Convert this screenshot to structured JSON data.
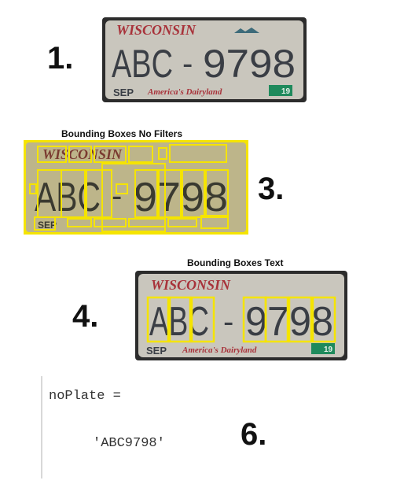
{
  "steps": {
    "s1": "1.",
    "s3": "3.",
    "s4": "4.",
    "s6": "6."
  },
  "plate": {
    "state": "WISCONSIN",
    "number_left": "ABC",
    "dash": "-",
    "number_right": "9798",
    "month": "SEP",
    "slogan": "America's Dairyland",
    "sticker": "19"
  },
  "panels": {
    "no_filters_title": "Bounding Boxes No Filters",
    "text_title": "Bounding Boxes Text"
  },
  "code": {
    "line1": "noPlate =",
    "line2": "'ABC9798'"
  },
  "colors": {
    "box_yellow": "#f5e400",
    "plate_bg": "#c9c6bd",
    "plate_text": "#3a3e45",
    "state_red": "#a8323a",
    "sticker_green": "#1f8a5c"
  }
}
